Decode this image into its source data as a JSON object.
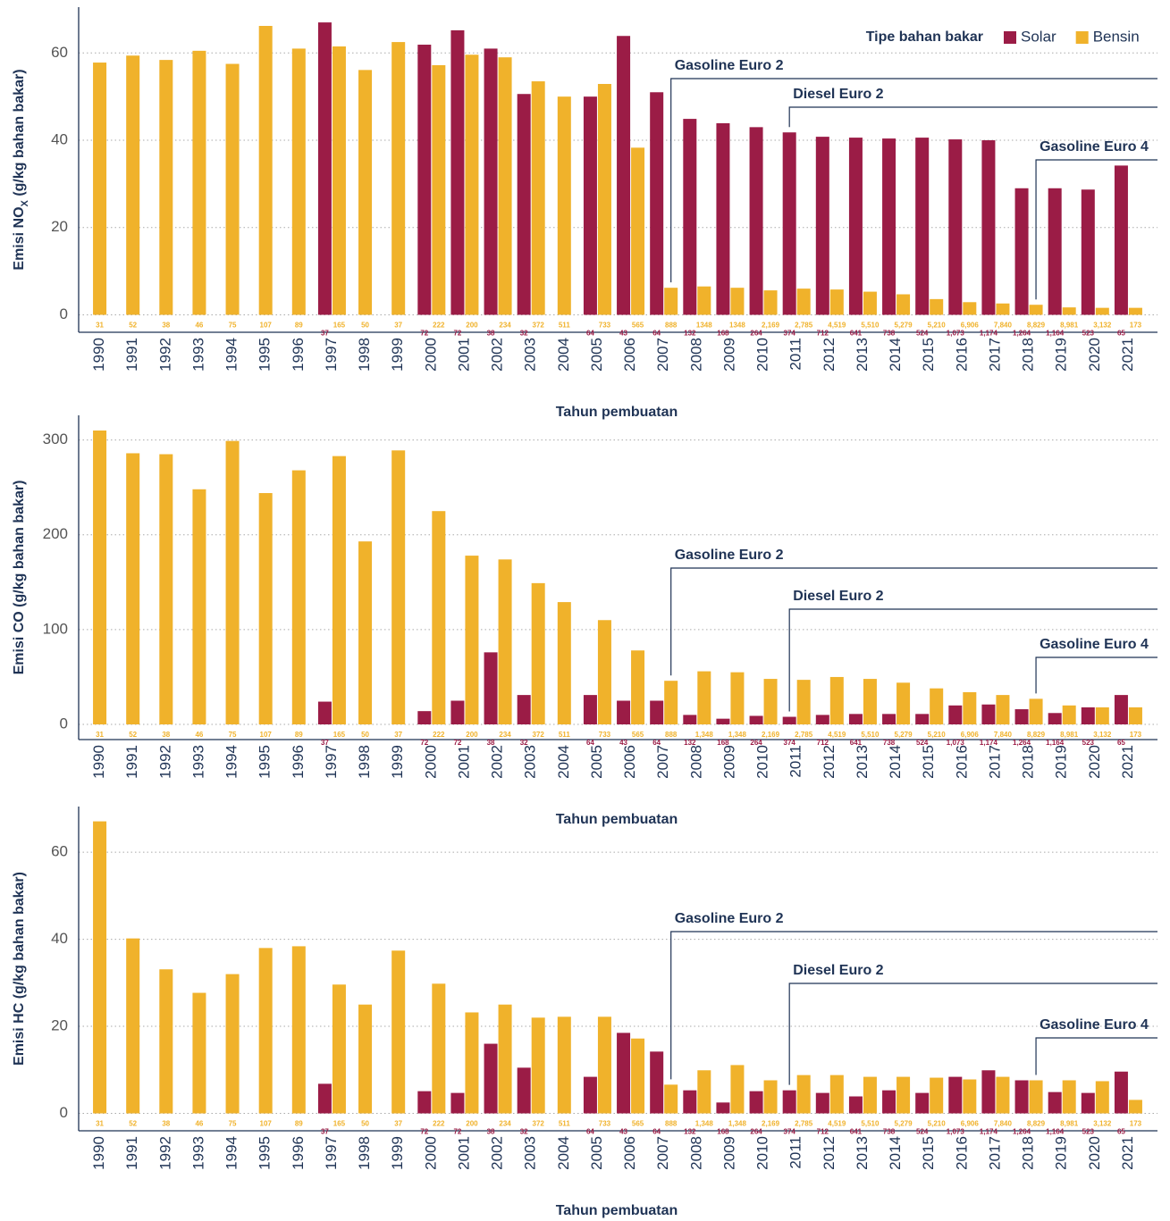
{
  "chart_data": [
    {
      "type": "bar",
      "ylabel": [
        "Emisi NO",
        "X",
        " (g/kg bahan bakar)"
      ],
      "xlabel": "Tahun pembuatan",
      "legend_title": "Tipe bahan bakar",
      "legend": "top-right",
      "grid": true,
      "categories": [
        "1990",
        "1991",
        "1992",
        "1993",
        "1994",
        "1995",
        "1996",
        "1997",
        "1998",
        "1999",
        "2000",
        "2001",
        "2002",
        "2003",
        "2004",
        "2005",
        "2006",
        "2007",
        "2008",
        "2009",
        "2010",
        "2011",
        "2012",
        "2013",
        "2014",
        "2015",
        "2016",
        "2017",
        "2018",
        "2019",
        "2020",
        "2021"
      ],
      "ylim": [
        -4,
        70.5
      ],
      "yticks": [
        0,
        20,
        40,
        60
      ],
      "series": [
        {
          "name": "Solar",
          "color": "#9b1c46",
          "values": [
            null,
            null,
            null,
            null,
            null,
            null,
            null,
            67,
            null,
            null,
            61.9,
            65.2,
            61,
            50.6,
            null,
            50,
            63.9,
            51,
            44.9,
            43.9,
            43,
            41.8,
            40.8,
            40.6,
            40.4,
            40.6,
            40.2,
            40,
            29,
            29,
            28.7,
            34.2
          ],
          "count_labels": [
            null,
            null,
            null,
            null,
            null,
            null,
            null,
            "37",
            null,
            null,
            "72",
            "72",
            "38",
            "32",
            null,
            "64",
            "43",
            "64",
            "132",
            "168",
            "264",
            "374",
            "712",
            "641",
            "738",
            "524",
            "1,073",
            "1,174",
            "1,264",
            "1,164",
            "523",
            "65"
          ]
        },
        {
          "name": "Bensin",
          "color": "#f0b22b",
          "values": [
            57.8,
            59.4,
            58.4,
            60.5,
            57.5,
            66.2,
            61,
            61.5,
            56.1,
            62.5,
            57.2,
            59.6,
            59,
            53.5,
            50,
            52.9,
            38.3,
            6.2,
            6.5,
            6.2,
            5.6,
            6,
            5.8,
            5.3,
            4.7,
            3.6,
            2.9,
            2.6,
            2.3,
            1.7,
            1.6,
            1.6
          ],
          "count_labels": [
            "31",
            "52",
            "38",
            "46",
            "75",
            "107",
            "89",
            "165",
            "50",
            "37",
            "222",
            "200",
            "234",
            "372",
            "511",
            "733",
            "565",
            "888",
            "1348",
            "1348",
            "2,169",
            "2,785",
            "4,519",
            "5,510",
            "5,279",
            "5,210",
            "6,906",
            "7,840",
            "8,829",
            "8,981",
            "3,132",
            "173"
          ]
        }
      ],
      "annotations": [
        {
          "label": "Gasoline Euro 2",
          "category": "2007"
        },
        {
          "label": "Diesel Euro 2",
          "category": "2011"
        },
        {
          "label": "Gasoline Euro 4",
          "category": "2018"
        }
      ]
    },
    {
      "type": "bar",
      "ylabel": "Emisi CO (g/kg bahan bakar)",
      "xlabel": "Tahun pembuatan",
      "grid": true,
      "categories": [
        "1990",
        "1991",
        "1992",
        "1993",
        "1994",
        "1995",
        "1996",
        "1997",
        "1998",
        "1999",
        "2000",
        "2001",
        "2002",
        "2003",
        "2004",
        "2005",
        "2006",
        "2007",
        "2008",
        "2009",
        "2010",
        "2011",
        "2012",
        "2013",
        "2014",
        "2015",
        "2016",
        "2017",
        "2018",
        "2019",
        "2020",
        "2021"
      ],
      "ylim": [
        -16,
        326
      ],
      "yticks": [
        0,
        100,
        200,
        300
      ],
      "series": [
        {
          "color": "#9b1c46",
          "values": [
            null,
            null,
            null,
            null,
            null,
            null,
            null,
            24,
            null,
            null,
            14,
            25,
            76,
            31,
            null,
            31,
            25,
            25,
            10,
            6,
            9,
            8,
            10,
            11,
            11,
            11,
            20,
            21,
            16,
            12,
            18,
            31
          ],
          "count_labels": [
            null,
            null,
            null,
            null,
            null,
            null,
            null,
            "37",
            null,
            null,
            "72",
            "72",
            "38",
            "32",
            null,
            "64",
            "43",
            "64",
            "132",
            "168",
            "264",
            "374",
            "712",
            "641",
            "738",
            "524",
            "1,073",
            "1,174",
            "1,264",
            "1,164",
            "523",
            "65"
          ]
        },
        {
          "color": "#f0b22b",
          "values": [
            310,
            286,
            285,
            248,
            299,
            244,
            268,
            283,
            193,
            289,
            225,
            178,
            174,
            149,
            129,
            110,
            78,
            46,
            56,
            55,
            48,
            47,
            50,
            48,
            44,
            38,
            34,
            31,
            27,
            20,
            18,
            18
          ],
          "count_labels": [
            "31",
            "52",
            "38",
            "46",
            "75",
            "107",
            "89",
            "165",
            "50",
            "37",
            "222",
            "200",
            "234",
            "372",
            "511",
            "733",
            "565",
            "888",
            "1,348",
            "1,348",
            "2,169",
            "2,785",
            "4,519",
            "5,510",
            "5,279",
            "5,210",
            "6,906",
            "7,840",
            "8,829",
            "8,981",
            "3,132",
            "173"
          ]
        }
      ],
      "annotations": [
        {
          "label": "Gasoline Euro 2",
          "category": "2007"
        },
        {
          "label": "Diesel Euro 2",
          "category": "2011"
        },
        {
          "label": "Gasoline Euro 4",
          "category": "2018"
        }
      ]
    },
    {
      "type": "bar",
      "ylabel": "Emisi HC (g/kg bahan bakar)",
      "xlabel": "Tahun pembuatan",
      "grid": true,
      "categories": [
        "1990",
        "1991",
        "1992",
        "1993",
        "1994",
        "1995",
        "1996",
        "1997",
        "1998",
        "1999",
        "2000",
        "2001",
        "2002",
        "2003",
        "2004",
        "2005",
        "2006",
        "2007",
        "2008",
        "2009",
        "2010",
        "2011",
        "2012",
        "2013",
        "2014",
        "2015",
        "2016",
        "2017",
        "2018",
        "2019",
        "2020",
        "2021"
      ],
      "ylim": [
        -4,
        70.5
      ],
      "yticks": [
        0,
        20,
        40,
        60
      ],
      "series": [
        {
          "color": "#9b1c46",
          "values": [
            null,
            null,
            null,
            null,
            null,
            null,
            null,
            6.8,
            null,
            null,
            5.1,
            4.7,
            16,
            10.5,
            null,
            8.4,
            18.5,
            14.2,
            5.3,
            2.5,
            5.1,
            5.3,
            4.7,
            3.9,
            5.3,
            4.7,
            8.4,
            9.9,
            7.6,
            4.9,
            4.7,
            9.6
          ],
          "count_labels": [
            null,
            null,
            null,
            null,
            null,
            null,
            null,
            "37",
            null,
            null,
            "72",
            "72",
            "38",
            "32",
            null,
            "64",
            "43",
            "64",
            "132",
            "168",
            "264",
            "374",
            "712",
            "641",
            "738",
            "524",
            "1,073",
            "1,174",
            "1,264",
            "1,164",
            "523",
            "65"
          ]
        },
        {
          "color": "#f0b22b",
          "values": [
            67.1,
            40.2,
            33.1,
            27.7,
            32,
            38,
            38.4,
            29.6,
            25,
            37.4,
            29.8,
            23.2,
            25,
            22,
            22.2,
            22.2,
            17.2,
            6.6,
            9.9,
            11.1,
            7.6,
            8.8,
            8.8,
            8.4,
            8.4,
            8.2,
            7.8,
            8.4,
            7.6,
            7.6,
            7.4,
            3.1
          ],
          "count_labels": [
            "31",
            "52",
            "38",
            "46",
            "75",
            "107",
            "89",
            "165",
            "50",
            "37",
            "222",
            "200",
            "234",
            "372",
            "511",
            "733",
            "565",
            "888",
            "1,348",
            "1,348",
            "2,169",
            "2,785",
            "4,519",
            "5,510",
            "5,279",
            "5,210",
            "6,906",
            "7,840",
            "8,829",
            "8,981",
            "3,132",
            "173"
          ]
        }
      ],
      "annotations": [
        {
          "label": "Gasoline Euro 2",
          "category": "2007"
        },
        {
          "label": "Diesel Euro 2",
          "category": "2011"
        },
        {
          "label": "Gasoline Euro 4",
          "category": "2018"
        }
      ]
    }
  ]
}
